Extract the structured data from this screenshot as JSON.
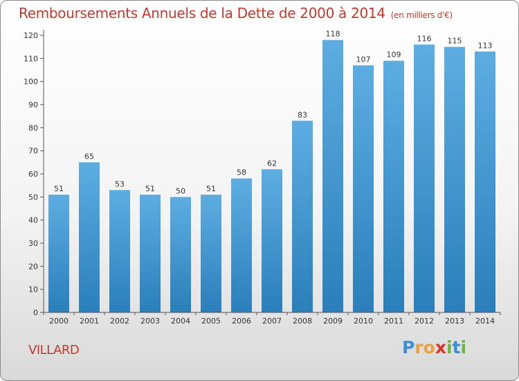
{
  "chart_data": {
    "type": "bar",
    "title": "Remboursements Annuels de la Dette de 2000 à 2014",
    "subtitle": "(en milliers d'€)",
    "categories": [
      "2000",
      "2001",
      "2002",
      "2003",
      "2004",
      "2005",
      "2006",
      "2007",
      "2008",
      "2009",
      "2010",
      "2011",
      "2012",
      "2013",
      "2014"
    ],
    "values": [
      51,
      65,
      53,
      51,
      50,
      51,
      58,
      62,
      83,
      118,
      107,
      109,
      116,
      115,
      113
    ],
    "data_labels": [
      "51",
      "65",
      "53",
      "51",
      "50",
      "51",
      "58",
      "62",
      "83",
      "118",
      "107",
      "109",
      "116",
      "115",
      "113"
    ],
    "xlabel": "",
    "ylabel": "",
    "ylim": [
      0,
      120
    ],
    "yticks": [
      0,
      10,
      20,
      30,
      40,
      50,
      60,
      70,
      80,
      90,
      100,
      110,
      120
    ],
    "grid": false,
    "colors": {
      "bar_top": "#5dade2",
      "bar_bottom": "#2a7fba",
      "title": "#c0392b"
    }
  },
  "commune": "VILLARD",
  "logo": {
    "letters": [
      "P",
      "r",
      "o",
      "x",
      "i",
      "t",
      "i"
    ],
    "colors": [
      "#3b8fd6",
      "#e8a33d",
      "#e8a33d",
      "#d9342b",
      "#6fb43f",
      "#3b8fd6",
      "#6fb43f"
    ]
  }
}
